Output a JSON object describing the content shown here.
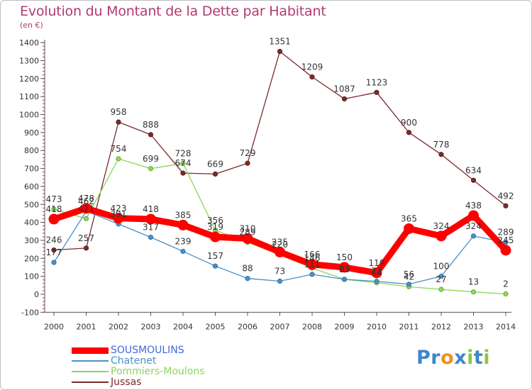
{
  "title": "Evolution du Montant de la Dette par Habitant",
  "subtitle": "(en €)",
  "logo": {
    "text": "Proxiti",
    "letters": [
      {
        "ch": "P",
        "color": "#3f86c8"
      },
      {
        "ch": "r",
        "color": "#3f86c8"
      },
      {
        "ch": "o",
        "color": "#f0901e"
      },
      {
        "ch": "x",
        "color": "#3f86c8"
      },
      {
        "ch": "i",
        "color": "#8cc63f"
      },
      {
        "ch": "t",
        "color": "#3f86c8"
      },
      {
        "ch": "i",
        "color": "#8cc63f"
      }
    ]
  },
  "chart_data": {
    "type": "line",
    "title": "Evolution du Montant de la Dette par Habitant",
    "ylabel": "(en €)",
    "xlabel": "",
    "ylim": [
      -100,
      1400
    ],
    "yticks": [
      -100,
      0,
      100,
      200,
      300,
      400,
      500,
      600,
      700,
      800,
      900,
      1000,
      1100,
      1200,
      1300,
      1400
    ],
    "grid": false,
    "legend_position": "bottom-left",
    "categories": [
      "2000",
      "2001",
      "2002",
      "2003",
      "2004",
      "2005",
      "2006",
      "2007",
      "2008",
      "2009",
      "2010",
      "2011",
      "2012",
      "2013",
      "2014"
    ],
    "series": [
      {
        "name": "SOUSMOULINS",
        "color": "#ff0000",
        "values": [
          418,
          478,
          423,
          418,
          385,
          319,
          310,
          235,
          166,
          150,
          119,
          365,
          324,
          438,
          245
        ]
      },
      {
        "name": "Chatenet",
        "color": "#4a90c8",
        "values": [
          177,
          462,
          391,
          317,
          239,
          157,
          88,
          73,
          111,
          83,
          72,
          56,
          100,
          324,
          289
        ]
      },
      {
        "name": "Pommiers-Moulons",
        "color": "#8cd65a",
        "values": [
          473,
          421,
          754,
          699,
          728,
          356,
          289,
          220,
          146,
          83,
          64,
          42,
          27,
          13,
          2
        ]
      },
      {
        "name": "Jussas",
        "color": "#7a2a2a",
        "values": [
          246,
          257,
          958,
          888,
          674,
          669,
          729,
          1351,
          1209,
          1087,
          1123,
          900,
          778,
          634,
          492
        ]
      }
    ]
  }
}
